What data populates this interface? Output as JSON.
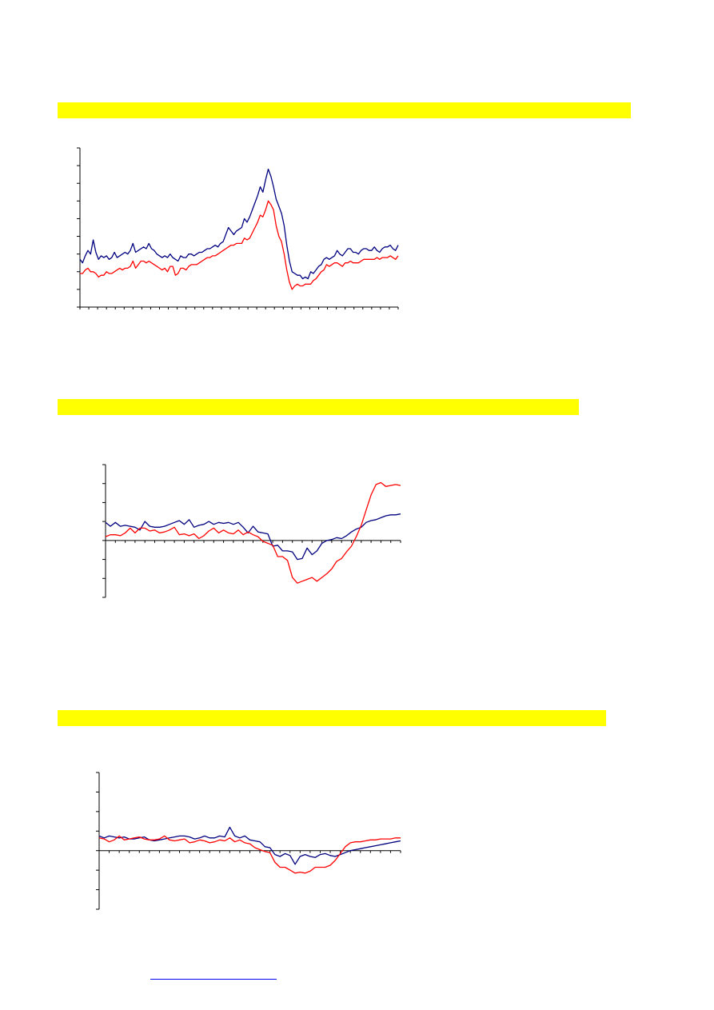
{
  "sections": [
    {
      "band_text": ""
    },
    {
      "band_text": ""
    },
    {
      "band_text": ""
    }
  ],
  "footer": {
    "link_text": ""
  },
  "chart_data": [
    {
      "type": "line",
      "title": "",
      "xlabel": "",
      "ylabel": "",
      "ylim": [
        0,
        9
      ],
      "x": [
        0,
        1,
        2,
        3,
        4,
        5,
        6,
        7,
        8,
        9,
        10,
        11,
        12,
        13,
        14,
        15,
        16,
        17,
        18,
        19,
        20,
        21,
        22,
        23,
        24,
        25,
        26,
        27,
        28,
        29,
        30,
        31,
        32,
        33,
        34,
        35,
        36,
        37,
        38,
        39,
        40,
        41,
        42,
        43,
        44,
        45,
        46,
        47,
        48,
        49,
        50,
        51,
        52,
        53,
        54,
        55,
        56,
        57,
        58,
        59,
        60,
        61,
        62,
        63,
        64,
        65,
        66,
        67,
        68,
        69,
        70,
        71,
        72,
        73,
        74,
        75,
        76,
        77,
        78,
        79,
        80,
        81,
        82,
        83,
        84,
        85,
        86,
        87,
        88,
        89,
        90,
        91,
        92,
        93,
        94,
        95,
        96,
        97,
        98,
        99,
        100,
        101,
        102,
        103,
        104,
        105,
        106,
        107,
        108,
        109,
        110,
        111,
        112,
        113,
        114,
        115,
        116,
        117,
        118,
        119,
        120
      ],
      "series": [
        {
          "color": "#000080",
          "values": [
            2.7,
            2.5,
            2.9,
            3.2,
            3.0,
            3.8,
            3.1,
            2.7,
            2.9,
            2.8,
            2.9,
            2.7,
            2.8,
            3.1,
            2.8,
            2.9,
            3.0,
            3.1,
            3.0,
            3.2,
            3.6,
            3.1,
            3.2,
            3.3,
            3.4,
            3.3,
            3.6,
            3.3,
            3.2,
            3.0,
            2.9,
            2.8,
            2.9,
            2.8,
            3.0,
            2.8,
            2.7,
            2.6,
            2.9,
            2.8,
            2.8,
            3.0,
            3.0,
            2.9,
            3.0,
            3.1,
            3.1,
            3.2,
            3.3,
            3.3,
            3.4,
            3.5,
            3.4,
            3.6,
            3.7,
            4.1,
            4.5,
            4.3,
            4.1,
            4.3,
            4.4,
            4.5,
            5.0,
            4.8,
            5.1,
            5.5,
            5.9,
            6.3,
            6.8,
            6.5,
            7.2,
            7.8,
            7.4,
            6.8,
            6.1,
            5.7,
            5.3,
            4.6,
            3.5,
            2.6,
            2.0,
            1.9,
            1.8,
            1.8,
            1.6,
            1.7,
            1.6,
            2.0,
            1.9,
            2.1,
            2.3,
            2.4,
            2.7,
            2.8,
            2.7,
            2.8,
            2.9,
            3.2,
            3.0,
            2.9,
            3.1,
            3.3,
            3.3,
            3.1,
            3.1,
            3.0,
            3.2,
            3.3,
            3.3,
            3.2,
            3.2,
            3.4,
            3.2,
            3.1,
            3.3,
            3.4,
            3.4,
            3.5,
            3.3,
            3.2,
            3.5
          ]
        },
        {
          "color": "#ff0000",
          "values": [
            1.9,
            1.9,
            2.1,
            2.2,
            2.0,
            2.0,
            1.9,
            1.7,
            1.8,
            1.8,
            2.0,
            1.9,
            1.9,
            2.0,
            2.1,
            2.2,
            2.1,
            2.2,
            2.2,
            2.3,
            2.6,
            2.2,
            2.4,
            2.6,
            2.6,
            2.5,
            2.6,
            2.5,
            2.4,
            2.3,
            2.2,
            2.1,
            2.2,
            2.0,
            2.3,
            2.3,
            1.8,
            1.9,
            2.2,
            2.2,
            2.1,
            2.3,
            2.4,
            2.4,
            2.4,
            2.5,
            2.6,
            2.7,
            2.8,
            2.8,
            2.9,
            2.9,
            3.0,
            3.1,
            3.2,
            3.3,
            3.4,
            3.5,
            3.5,
            3.6,
            3.6,
            3.6,
            3.9,
            3.8,
            3.9,
            4.2,
            4.5,
            4.8,
            5.2,
            5.1,
            5.5,
            6.0,
            5.8,
            5.5,
            4.6,
            4.0,
            3.7,
            3.0,
            2.1,
            1.4,
            1.0,
            1.2,
            1.3,
            1.2,
            1.2,
            1.3,
            1.3,
            1.3,
            1.5,
            1.6,
            1.8,
            2.0,
            2.1,
            2.4,
            2.3,
            2.4,
            2.5,
            2.5,
            2.4,
            2.3,
            2.5,
            2.5,
            2.6,
            2.5,
            2.5,
            2.5,
            2.6,
            2.7,
            2.7,
            2.7,
            2.7,
            2.7,
            2.8,
            2.7,
            2.8,
            2.8,
            2.8,
            2.9,
            2.8,
            2.7,
            2.9
          ]
        }
      ]
    },
    {
      "type": "line",
      "title": "",
      "xlabel": "",
      "ylabel": "",
      "ylim": [
        -3,
        4
      ],
      "x": [
        0,
        1,
        2,
        3,
        4,
        5,
        6,
        7,
        8,
        9,
        10,
        11,
        12,
        13,
        14,
        15,
        16,
        17,
        18,
        19,
        20,
        21,
        22,
        23,
        24,
        25,
        26,
        27,
        28,
        29,
        30,
        31,
        32,
        33,
        34,
        35,
        36,
        37,
        38,
        39,
        40,
        41,
        42,
        43,
        44,
        45,
        46,
        47,
        48,
        49,
        50,
        51,
        52,
        53,
        54,
        55,
        56,
        57,
        58,
        59,
        60
      ],
      "series": [
        {
          "color": "#000080",
          "values": [
            0.95,
            0.75,
            0.95,
            0.75,
            0.8,
            0.75,
            0.7,
            0.55,
            1.0,
            0.75,
            0.7,
            0.7,
            0.75,
            0.85,
            0.95,
            1.05,
            0.85,
            1.1,
            0.7,
            0.8,
            0.85,
            1.0,
            0.85,
            0.95,
            0.9,
            0.95,
            0.85,
            0.95,
            0.7,
            0.4,
            0.75,
            0.45,
            0.4,
            0.35,
            -0.3,
            -0.25,
            -0.55,
            -0.55,
            -0.6,
            -1.0,
            -0.95,
            -0.4,
            -0.75,
            -0.55,
            -0.15,
            0.0,
            0.05,
            0.15,
            0.1,
            0.25,
            0.45,
            0.6,
            0.7,
            0.95,
            1.05,
            1.1,
            1.2,
            1.3,
            1.35,
            1.35,
            1.4
          ]
        },
        {
          "color": "#ff0000",
          "values": [
            0.2,
            0.3,
            0.3,
            0.25,
            0.4,
            0.65,
            0.4,
            0.65,
            0.65,
            0.5,
            0.55,
            0.4,
            0.45,
            0.55,
            0.7,
            0.3,
            0.35,
            0.25,
            0.35,
            0.1,
            0.25,
            0.5,
            0.65,
            0.4,
            0.55,
            0.4,
            0.35,
            0.55,
            0.3,
            0.45,
            0.3,
            0.2,
            -0.05,
            -0.15,
            -0.25,
            -0.85,
            -0.85,
            -1.05,
            -1.95,
            -2.25,
            -2.15,
            -2.05,
            -1.95,
            -2.15,
            -1.95,
            -1.75,
            -1.5,
            -1.1,
            -0.95,
            -0.6,
            -0.3,
            0.2,
            0.8,
            1.6,
            2.4,
            2.95,
            3.05,
            2.85,
            2.9,
            2.95,
            2.9
          ]
        }
      ]
    },
    {
      "type": "line",
      "title": "",
      "xlabel": "",
      "ylabel": "",
      "ylim": [
        -3,
        4
      ],
      "x": [
        0,
        1,
        2,
        3,
        4,
        5,
        6,
        7,
        8,
        9,
        10,
        11,
        12,
        13,
        14,
        15,
        16,
        17,
        18,
        19,
        20,
        21,
        22,
        23,
        24,
        25,
        26,
        27,
        28,
        29,
        30,
        31,
        32,
        33,
        34,
        35,
        36,
        37,
        38,
        39,
        40,
        41,
        42,
        43,
        44,
        45,
        46,
        47,
        48,
        49,
        50,
        51,
        52,
        53,
        54,
        55,
        56,
        57,
        58,
        59,
        60
      ],
      "series": [
        {
          "color": "#000080",
          "values": [
            0.75,
            0.65,
            0.75,
            0.7,
            0.65,
            0.7,
            0.6,
            0.6,
            0.65,
            0.7,
            0.55,
            0.5,
            0.55,
            0.6,
            0.65,
            0.7,
            0.75,
            0.75,
            0.7,
            0.6,
            0.65,
            0.75,
            0.65,
            0.65,
            0.75,
            0.7,
            1.2,
            0.75,
            0.65,
            0.75,
            0.55,
            0.5,
            0.45,
            0.2,
            0.15,
            -0.2,
            -0.3,
            -0.15,
            -0.25,
            -0.7,
            -0.3,
            -0.2,
            -0.3,
            -0.35,
            -0.2,
            -0.15,
            -0.25,
            -0.3,
            -0.2,
            -0.1,
            0.0,
            0.05,
            0.1,
            0.15,
            0.2,
            0.25,
            0.3,
            0.35,
            0.4,
            0.45,
            0.5
          ]
        },
        {
          "color": "#ff0000",
          "values": [
            0.65,
            0.6,
            0.45,
            0.55,
            0.75,
            0.55,
            0.6,
            0.65,
            0.7,
            0.6,
            0.55,
            0.55,
            0.6,
            0.75,
            0.55,
            0.5,
            0.55,
            0.6,
            0.4,
            0.45,
            0.55,
            0.5,
            0.4,
            0.45,
            0.55,
            0.5,
            0.65,
            0.45,
            0.55,
            0.4,
            0.35,
            0.15,
            0.05,
            -0.05,
            -0.1,
            -0.6,
            -0.85,
            -0.85,
            -1.0,
            -1.15,
            -1.1,
            -1.15,
            -1.05,
            -0.85,
            -0.85,
            -0.85,
            -0.75,
            -0.5,
            -0.15,
            0.2,
            0.4,
            0.45,
            0.45,
            0.5,
            0.55,
            0.55,
            0.6,
            0.6,
            0.6,
            0.65,
            0.65
          ]
        }
      ]
    }
  ]
}
